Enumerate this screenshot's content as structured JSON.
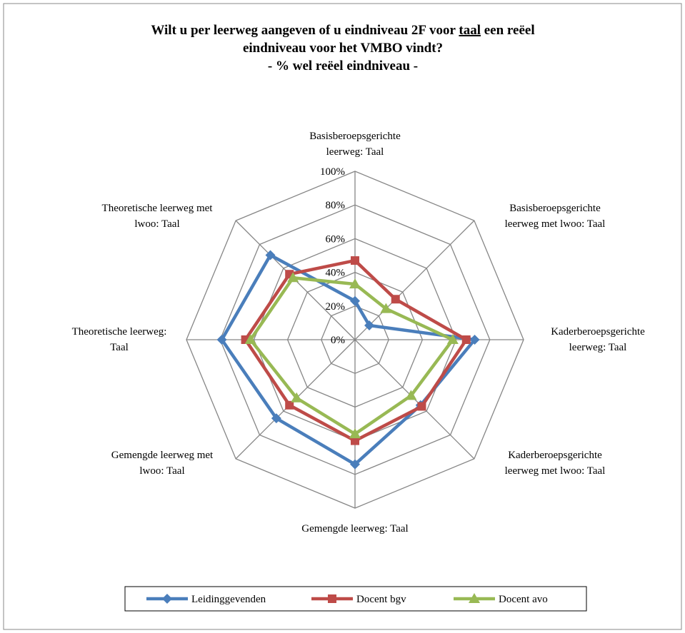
{
  "chart_data": {
    "type": "radar",
    "title_lines": [
      [
        "Wilt u per leerweg aangeven of u eindniveau 2F voor ",
        "taal",
        " een reëel"
      ],
      [
        "eindniveau voor het VMBO vindt?"
      ],
      [
        "- % wel reëel eindniveau -"
      ]
    ],
    "categories": [
      [
        "Basisberoepsgerichte",
        "leerweg: Taal"
      ],
      [
        "Basisberoepsgerichte",
        "leerweg met lwoo: Taal"
      ],
      [
        "Kaderberoepsgerichte",
        "leerweg: Taal"
      ],
      [
        "Kaderberoepsgerichte",
        "leerweg met lwoo: Taal"
      ],
      [
        "Gemengde leerweg:  Taal"
      ],
      [
        "Gemengde leerweg  met",
        "lwoo: Taal"
      ],
      [
        "Theoretische leerweg:",
        "Taal"
      ],
      [
        "Theoretische leerweg met",
        "lwoo: Taal"
      ]
    ],
    "series": [
      {
        "name": "Leidinggevenden",
        "color": "#4a7ebb",
        "marker": "diamond",
        "values": [
          23,
          12,
          71,
          55,
          74,
          66,
          79,
          71
        ]
      },
      {
        "name": "Docent bgv",
        "color": "#be4b48",
        "marker": "square",
        "values": [
          47,
          34,
          66,
          56,
          60,
          55,
          65,
          55
        ]
      },
      {
        "name": "Docent avo",
        "color": "#98b954",
        "marker": "triangle",
        "values": [
          33,
          26,
          58,
          47,
          56,
          49,
          62,
          52
        ]
      }
    ],
    "rlim": [
      0,
      100
    ],
    "rticks": [
      {
        "value": 0,
        "label": "0%"
      },
      {
        "value": 20,
        "label": "20%"
      },
      {
        "value": 40,
        "label": "40%"
      },
      {
        "value": 60,
        "label": "60%"
      },
      {
        "value": 80,
        "label": "80%"
      },
      {
        "value": 100,
        "label": "100%"
      }
    ],
    "legend": "bottom"
  }
}
